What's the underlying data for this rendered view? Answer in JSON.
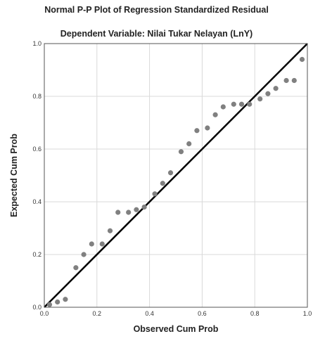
{
  "chart_data": {
    "type": "scatter",
    "title": "Normal P-P Plot of Regression Standardized Residual",
    "subtitle": "Dependent Variable: Nilai Tukar Nelayan (LnY)",
    "xlabel": "Observed Cum Prob",
    "ylabel": "Expected Cum Prob",
    "xlim": [
      0,
      1
    ],
    "ylim": [
      0,
      1
    ],
    "xticks": [
      "0.0",
      "0.2",
      "0.4",
      "0.6",
      "0.8",
      "1.0"
    ],
    "yticks": [
      "0.0",
      "0.2",
      "0.4",
      "0.6",
      "0.8",
      "1.0"
    ],
    "grid": true,
    "reference_line": {
      "from": [
        0,
        0
      ],
      "to": [
        1,
        1
      ]
    },
    "colors": {
      "points": "#808080",
      "line": "#000000",
      "grid": "#d9d9d9"
    },
    "points": [
      {
        "x": 0.02,
        "y": 0.01
      },
      {
        "x": 0.05,
        "y": 0.02
      },
      {
        "x": 0.08,
        "y": 0.03
      },
      {
        "x": 0.12,
        "y": 0.15
      },
      {
        "x": 0.15,
        "y": 0.2
      },
      {
        "x": 0.18,
        "y": 0.24
      },
      {
        "x": 0.22,
        "y": 0.24
      },
      {
        "x": 0.25,
        "y": 0.29
      },
      {
        "x": 0.28,
        "y": 0.36
      },
      {
        "x": 0.32,
        "y": 0.36
      },
      {
        "x": 0.35,
        "y": 0.37
      },
      {
        "x": 0.38,
        "y": 0.38
      },
      {
        "x": 0.42,
        "y": 0.43
      },
      {
        "x": 0.45,
        "y": 0.47
      },
      {
        "x": 0.48,
        "y": 0.51
      },
      {
        "x": 0.52,
        "y": 0.59
      },
      {
        "x": 0.55,
        "y": 0.62
      },
      {
        "x": 0.58,
        "y": 0.67
      },
      {
        "x": 0.62,
        "y": 0.68
      },
      {
        "x": 0.65,
        "y": 0.73
      },
      {
        "x": 0.68,
        "y": 0.76
      },
      {
        "x": 0.72,
        "y": 0.77
      },
      {
        "x": 0.75,
        "y": 0.77
      },
      {
        "x": 0.78,
        "y": 0.77
      },
      {
        "x": 0.82,
        "y": 0.79
      },
      {
        "x": 0.85,
        "y": 0.81
      },
      {
        "x": 0.88,
        "y": 0.83
      },
      {
        "x": 0.92,
        "y": 0.86
      },
      {
        "x": 0.95,
        "y": 0.86
      },
      {
        "x": 0.98,
        "y": 0.94
      }
    ]
  }
}
